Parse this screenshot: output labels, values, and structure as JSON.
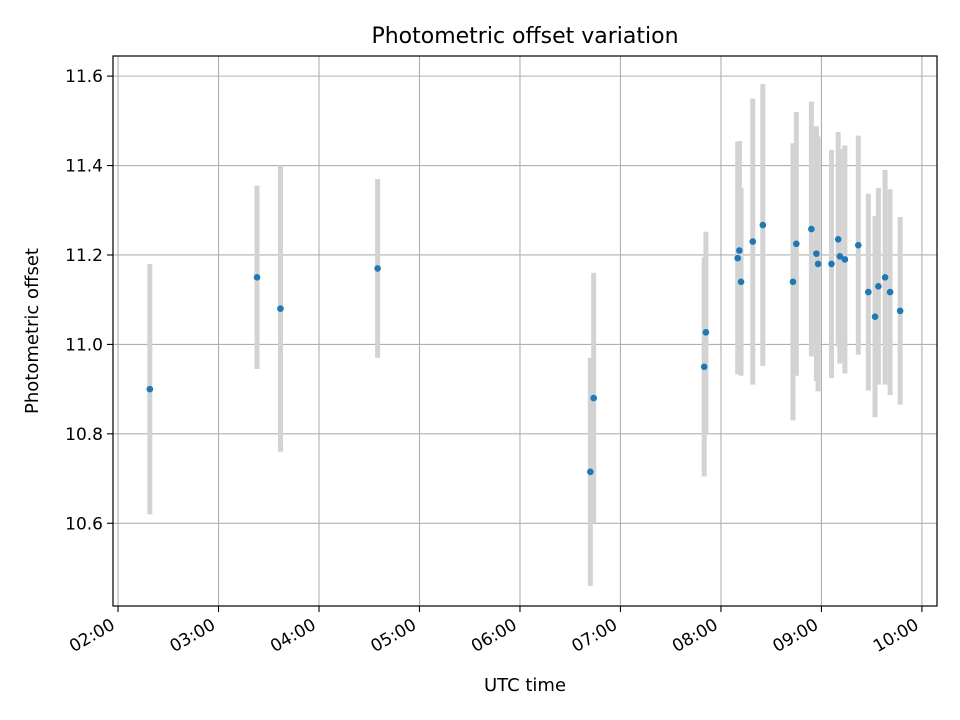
{
  "chart_data": {
    "type": "scatter",
    "title": "Photometric offset variation",
    "xlabel": "UTC time",
    "ylabel": "Photometric offset",
    "x_tick_labels": [
      "02:00",
      "03:00",
      "04:00",
      "05:00",
      "06:00",
      "07:00",
      "08:00",
      "09:00",
      "10:00"
    ],
    "x_tick_hours": [
      2,
      3,
      4,
      5,
      6,
      7,
      8,
      9,
      10
    ],
    "y_ticks": [
      10.6,
      10.8,
      11.0,
      11.2,
      11.4,
      11.6
    ],
    "y_tick_labels": [
      "10.6",
      "10.8",
      "11.0",
      "11.2",
      "11.4",
      "11.6"
    ],
    "xlim": [
      "01:57",
      "10:09"
    ],
    "ylim": [
      10.415,
      11.645
    ],
    "grid": true,
    "marker_color": "#1f77b4",
    "errorbar_color": "#d3d3d3",
    "points": [
      {
        "time": "02:19",
        "y": 10.9,
        "err": 0.28
      },
      {
        "time": "03:23",
        "y": 11.15,
        "err": 0.205
      },
      {
        "time": "03:37",
        "y": 11.08,
        "err": 0.32
      },
      {
        "time": "04:35",
        "y": 11.17,
        "err": 0.2
      },
      {
        "time": "06:42",
        "y": 10.715,
        "err": 0.255
      },
      {
        "time": "06:44",
        "y": 10.88,
        "err": 0.28
      },
      {
        "time": "07:50",
        "y": 10.95,
        "err": 0.245
      },
      {
        "time": "07:51",
        "y": 11.027,
        "err": 0.225
      },
      {
        "time": "08:10",
        "y": 11.193,
        "err": 0.26
      },
      {
        "time": "08:11",
        "y": 11.21,
        "err": 0.245
      },
      {
        "time": "08:12",
        "y": 11.14,
        "err": 0.21
      },
      {
        "time": "08:19",
        "y": 11.23,
        "err": 0.32
      },
      {
        "time": "08:25",
        "y": 11.267,
        "err": 0.315
      },
      {
        "time": "08:43",
        "y": 11.14,
        "err": 0.31
      },
      {
        "time": "08:45",
        "y": 11.225,
        "err": 0.295
      },
      {
        "time": "08:54",
        "y": 11.258,
        "err": 0.285
      },
      {
        "time": "08:57",
        "y": 11.203,
        "err": 0.285
      },
      {
        "time": "08:58",
        "y": 11.18,
        "err": 0.285
      },
      {
        "time": "09:06",
        "y": 11.18,
        "err": 0.255
      },
      {
        "time": "09:10",
        "y": 11.235,
        "err": 0.24
      },
      {
        "time": "09:11",
        "y": 11.197,
        "err": 0.24
      },
      {
        "time": "09:14",
        "y": 11.19,
        "err": 0.255
      },
      {
        "time": "09:22",
        "y": 11.222,
        "err": 0.245
      },
      {
        "time": "09:28",
        "y": 11.117,
        "err": 0.22
      },
      {
        "time": "09:32",
        "y": 11.062,
        "err": 0.225
      },
      {
        "time": "09:34",
        "y": 11.13,
        "err": 0.22
      },
      {
        "time": "09:38",
        "y": 11.15,
        "err": 0.24
      },
      {
        "time": "09:41",
        "y": 11.117,
        "err": 0.23
      },
      {
        "time": "09:47",
        "y": 11.075,
        "err": 0.21
      }
    ]
  }
}
